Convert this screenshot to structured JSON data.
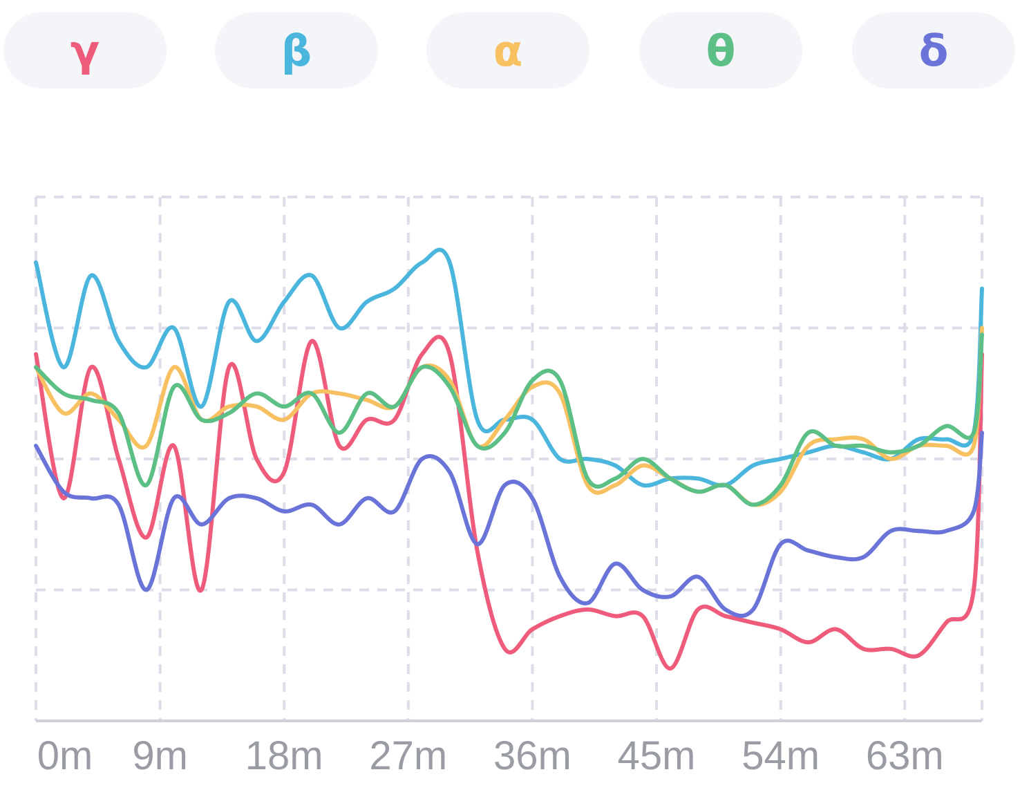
{
  "legend": [
    {
      "label": "γ",
      "color": "#ef5b7a"
    },
    {
      "label": "β",
      "color": "#4ab5dd"
    },
    {
      "label": "α",
      "color": "#f7c061"
    },
    {
      "label": "θ",
      "color": "#5cbf85"
    },
    {
      "label": "δ",
      "color": "#6a74d8"
    }
  ],
  "chart_data": {
    "type": "line",
    "xlabel": "",
    "ylabel": "",
    "x_tick_labels": [
      "0m",
      "9m",
      "18m",
      "27m",
      "36m",
      "45m",
      "54m",
      "63m"
    ],
    "x_ticks": [
      0,
      9,
      18,
      27,
      36,
      45,
      54,
      63
    ],
    "xlim": [
      0,
      68.6
    ],
    "ylim": [
      0,
      4
    ],
    "y_gridlines": [
      1,
      2,
      3,
      4
    ],
    "grid": true,
    "legend_position": "top",
    "x": [
      0,
      2,
      4,
      6,
      8,
      10,
      12,
      14,
      16,
      18,
      20,
      22,
      24,
      26,
      28,
      30,
      32,
      34,
      36,
      38,
      40,
      42,
      44,
      46,
      48,
      50,
      52,
      54,
      56,
      58,
      60,
      62,
      64,
      66,
      68,
      68.6
    ],
    "series": [
      {
        "label": "γ",
        "color": "#ef5b7a",
        "values": [
          2.8,
          1.7,
          2.7,
          2.0,
          1.4,
          2.1,
          1.0,
          2.7,
          2.0,
          1.9,
          2.9,
          2.1,
          2.3,
          2.3,
          2.8,
          2.8,
          1.3,
          0.55,
          0.7,
          0.8,
          0.85,
          0.8,
          0.8,
          0.4,
          0.85,
          0.8,
          0.75,
          0.7,
          0.6,
          0.7,
          0.55,
          0.55,
          0.5,
          0.75,
          1.0,
          2.8
        ]
      },
      {
        "label": "β",
        "color": "#4ab5dd",
        "values": [
          3.5,
          2.7,
          3.4,
          2.9,
          2.7,
          3.0,
          2.4,
          3.2,
          2.9,
          3.2,
          3.4,
          3.0,
          3.2,
          3.3,
          3.5,
          3.5,
          2.3,
          2.3,
          2.3,
          2.0,
          2.0,
          1.95,
          1.8,
          1.85,
          1.85,
          1.8,
          1.95,
          2.0,
          2.05,
          2.1,
          2.05,
          2.0,
          2.15,
          2.15,
          2.2,
          3.3
        ]
      },
      {
        "label": "α",
        "color": "#f7c061",
        "values": [
          2.7,
          2.35,
          2.5,
          2.3,
          2.1,
          2.7,
          2.3,
          2.4,
          2.4,
          2.3,
          2.5,
          2.5,
          2.45,
          2.4,
          2.7,
          2.6,
          2.1,
          2.3,
          2.55,
          2.5,
          1.8,
          1.8,
          1.95,
          1.85,
          1.75,
          1.8,
          1.65,
          1.75,
          2.1,
          2.15,
          2.15,
          2.0,
          2.1,
          2.1,
          2.1,
          3.0
        ]
      },
      {
        "label": "θ",
        "color": "#5cbf85",
        "values": [
          2.7,
          2.5,
          2.45,
          2.35,
          1.8,
          2.55,
          2.3,
          2.35,
          2.5,
          2.4,
          2.5,
          2.2,
          2.5,
          2.4,
          2.7,
          2.55,
          2.1,
          2.2,
          2.6,
          2.6,
          1.85,
          1.85,
          2.0,
          1.85,
          1.75,
          1.8,
          1.65,
          1.8,
          2.2,
          2.1,
          2.1,
          2.05,
          2.1,
          2.25,
          2.2,
          2.95
        ]
      },
      {
        "label": "δ",
        "color": "#6a74d8",
        "values": [
          2.1,
          1.75,
          1.7,
          1.65,
          1.0,
          1.7,
          1.5,
          1.7,
          1.7,
          1.6,
          1.65,
          1.5,
          1.7,
          1.6,
          2.0,
          1.9,
          1.35,
          1.8,
          1.7,
          1.1,
          0.9,
          1.2,
          1.0,
          0.95,
          1.1,
          0.85,
          0.85,
          1.35,
          1.3,
          1.25,
          1.25,
          1.45,
          1.45,
          1.45,
          1.6,
          2.2
        ]
      }
    ]
  }
}
